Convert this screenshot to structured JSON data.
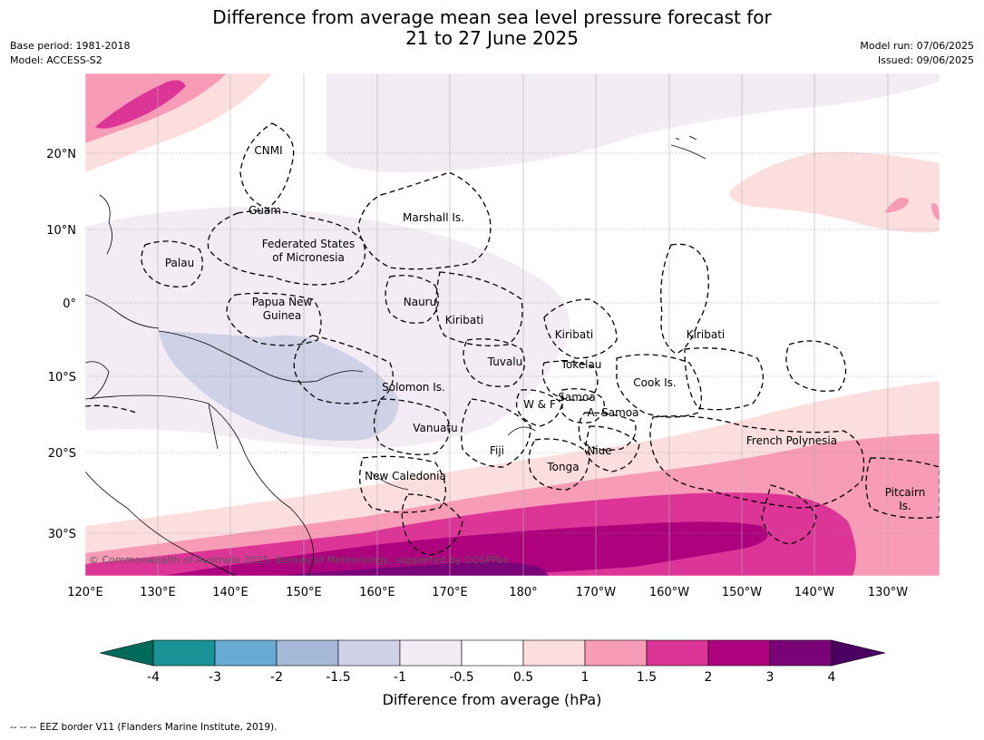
{
  "title": {
    "line1": "Difference from average mean sea level pressure forecast for",
    "line2": "21 to 27 June 2025"
  },
  "meta": {
    "base_period": "Base period: 1981-2018",
    "model": "Model: ACCESS-S2",
    "model_run": "Model run: 07/06/2025",
    "issued": "Issued: 09/06/2025"
  },
  "map": {
    "lat_ticks": [
      "20°N",
      "10°N",
      "0°",
      "10°S",
      "20°S",
      "30°S"
    ],
    "lon_ticks": [
      "120°E",
      "130°E",
      "140°E",
      "150°E",
      "160°E",
      "170°E",
      "180°",
      "170°W",
      "160°W",
      "150°W",
      "140°W",
      "130°W"
    ],
    "copyright": "© Commonwealth of Australia 2025, Bureau of Meteorology, supported by COSPPac",
    "regions": [
      {
        "name": "CNMI"
      },
      {
        "name": "Guam"
      },
      {
        "name": "Marshall Is."
      },
      {
        "name": "Federated States"
      },
      {
        "name": "of Micronesia"
      },
      {
        "name": "Palau"
      },
      {
        "name": "Papua New"
      },
      {
        "name": "Guinea"
      },
      {
        "name": "Nauru"
      },
      {
        "name": "Kiribati"
      },
      {
        "name": "Kiribati"
      },
      {
        "name": "Kiribati"
      },
      {
        "name": "Tuvalu"
      },
      {
        "name": "Tokelau"
      },
      {
        "name": "Cook Is."
      },
      {
        "name": "Solomon Is."
      },
      {
        "name": "Samoa"
      },
      {
        "name": "W & F"
      },
      {
        "name": "A. Samoa"
      },
      {
        "name": "Vanuatu"
      },
      {
        "name": "Fiji"
      },
      {
        "name": "Niue"
      },
      {
        "name": "French Polynesia"
      },
      {
        "name": "Tonga"
      },
      {
        "name": "New Caledonia"
      },
      {
        "name": "Pitcairn"
      },
      {
        "name": "Is."
      }
    ]
  },
  "colorbar": {
    "title": "Difference from average (hPa)",
    "ticks": [
      "-4",
      "-3",
      "-2",
      "-1.5",
      "-1",
      "-0.5",
      "0.5",
      "1",
      "1.5",
      "2",
      "3",
      "4"
    ],
    "low_color": "#006a5a",
    "high_color": "#4a0060",
    "colors": [
      "#1a9396",
      "#67aad4",
      "#a6b9d8",
      "#cfd1e6",
      "#f3ecf5",
      "#ffffff",
      "#fcdedf",
      "#f79bb7",
      "#dd3497",
      "#ae017e",
      "#7a0177"
    ]
  },
  "footnote": "--  --  -- EEZ border V11 (Flanders Marine Institute, 2019)."
}
